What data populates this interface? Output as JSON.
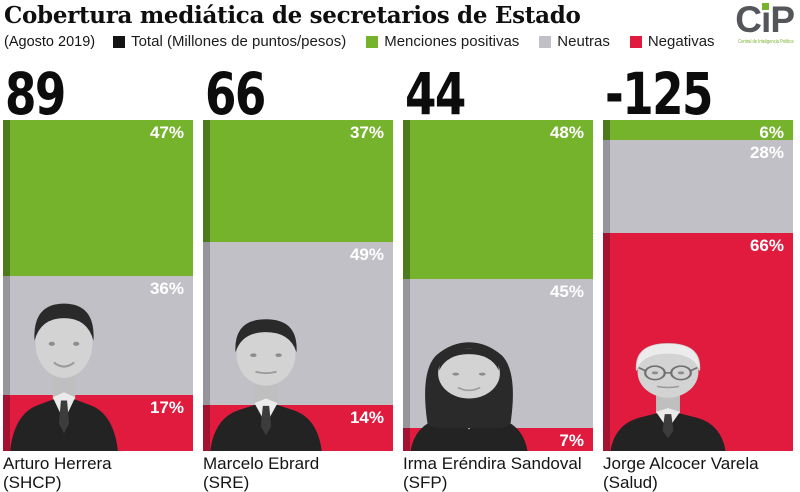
{
  "header": {
    "title": "Cobertura mediática de secretarios de Estado",
    "subtitle": "(Agosto 2019)",
    "legend": [
      {
        "label": "Total (Millones de puntos/pesos)",
        "swatch": "#141414"
      },
      {
        "label": "Menciones positivas",
        "swatch": "#75b32d"
      },
      {
        "label": "Neutras",
        "swatch": "#c1c0c6"
      },
      {
        "label": "Negativas",
        "swatch": "#e01b3d"
      }
    ],
    "logo": {
      "text": "CiP",
      "tagline": "Central de Inteligencia Política"
    }
  },
  "colors": {
    "positive": "#75b32d",
    "positive_edge": "#4e7a1e",
    "neutral": "#c1c0c6",
    "neutral_edge": "#96959c",
    "negative": "#e01b3d",
    "negative_edge": "#a31331",
    "accent_green": "#76b22c",
    "logo_gray": "#54565a"
  },
  "chart_data": {
    "type": "bar",
    "stacked": true,
    "orientation": "vertical",
    "value_unit": "%",
    "title": "Cobertura mediática de secretarios de Estado",
    "period": "Agosto 2019",
    "totals_label": "Total (Millones de puntos/pesos)",
    "categories": [
      "Arturo Herrera (SHCP)",
      "Marcelo Ebrard (SRE)",
      "Irma Eréndira Sandoval (SFP)",
      "Jorge Alcocer Varela (Salud)"
    ],
    "totals": [
      89,
      66,
      44,
      -125
    ],
    "series": [
      {
        "name": "Menciones positivas",
        "color": "#75b32d",
        "values": [
          47,
          37,
          48,
          6
        ]
      },
      {
        "name": "Neutras",
        "color": "#c1c0c6",
        "values": [
          36,
          49,
          45,
          28
        ]
      },
      {
        "name": "Negativas",
        "color": "#e01b3d",
        "values": [
          17,
          14,
          7,
          66
        ]
      }
    ],
    "columns": [
      {
        "total": "89",
        "name": "Arturo Herrera",
        "dept": "(SHCP)",
        "positive": 47,
        "neutral": 36,
        "negative": 17,
        "photo": {
          "style": "short",
          "hair": "dark",
          "glasses": false,
          "tie": true,
          "smile": true,
          "w": 118,
          "h": 170
        }
      },
      {
        "total": "66",
        "name": "Marcelo Ebrard",
        "dept": "(SRE)",
        "positive": 37,
        "neutral": 49,
        "negative": 14,
        "photo": {
          "style": "short",
          "hair": "dark",
          "glasses": false,
          "tie": true,
          "smile": false,
          "w": 122,
          "h": 152
        }
      },
      {
        "total": "44",
        "name": "Irma Eréndira Sandoval",
        "dept": "(SFP)",
        "positive": 48,
        "neutral": 45,
        "negative": 7,
        "photo": {
          "style": "long",
          "hair": "dark",
          "glasses": false,
          "tie": false,
          "smile": true,
          "w": 128,
          "h": 122
        }
      },
      {
        "total": "-125",
        "name": "Jorge Alcocer Varela",
        "dept": "(Salud)",
        "positive": 6,
        "neutral": 28,
        "negative": 66,
        "photo": {
          "style": "short",
          "hair": "white",
          "glasses": true,
          "tie": true,
          "smile": false,
          "w": 126,
          "h": 124
        }
      }
    ]
  }
}
